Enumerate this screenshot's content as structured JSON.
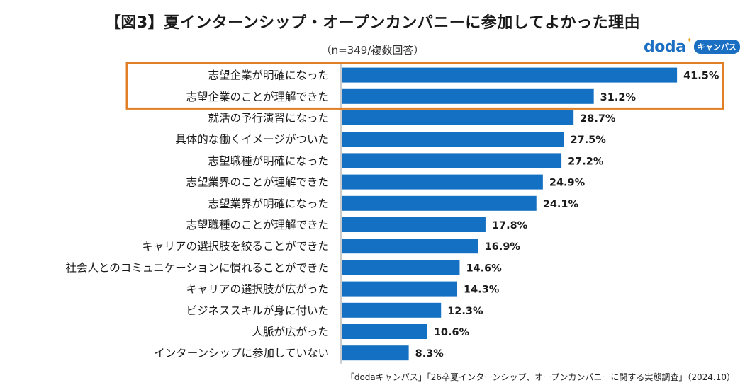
{
  "header": {
    "title": "【図3】夏インターンシップ・オープンカンパニーに参加してよかった理由",
    "subtitle": "（n=349/複数回答）"
  },
  "logo": {
    "word": "doda",
    "badge": "キャンパス"
  },
  "colors": {
    "bar": "#1470c2",
    "highlight": "#e07f26",
    "axis": "#9a9a9a"
  },
  "chart_data": {
    "type": "bar",
    "orientation": "horizontal",
    "title": "【図3】夏インターンシップ・オープンカンパニーに参加してよかった理由",
    "subtitle": "（n=349/複数回答）",
    "unit": "%",
    "xlim": [
      0,
      50
    ],
    "highlighted_categories": [
      "志望企業が明確になった",
      "志望企業のことが理解できた"
    ],
    "categories": [
      "志望企業が明確になった",
      "志望企業のことが理解できた",
      "就活の予行演習になった",
      "具体的な働くイメージがついた",
      "志望職種が明確になった",
      "志望業界のことが理解できた",
      "志望業界が明確になった",
      "志望職種のことが理解できた",
      "キャリアの選択肢を絞ることができた",
      "社会人とのコミュニケーションに慣れることができた",
      "キャリアの選択肢が広がった",
      "ビジネススキルが身に付いた",
      "人脈が広がった",
      "インターンシップに参加していない"
    ],
    "values": [
      41.5,
      31.2,
      28.7,
      27.5,
      27.2,
      24.9,
      24.1,
      17.8,
      16.9,
      14.6,
      14.3,
      12.3,
      10.6,
      8.3
    ],
    "value_labels": [
      "41.5%",
      "31.2%",
      "28.7%",
      "27.5%",
      "27.2%",
      "24.9%",
      "24.1%",
      "17.8%",
      "16.9%",
      "14.6%",
      "14.3%",
      "12.3%",
      "10.6%",
      "8.3%"
    ]
  },
  "footer": {
    "source": "「dodaキャンパス」「26卒夏インターンシップ、オープンカンパニーに関する実態調査」（2024.10）"
  }
}
